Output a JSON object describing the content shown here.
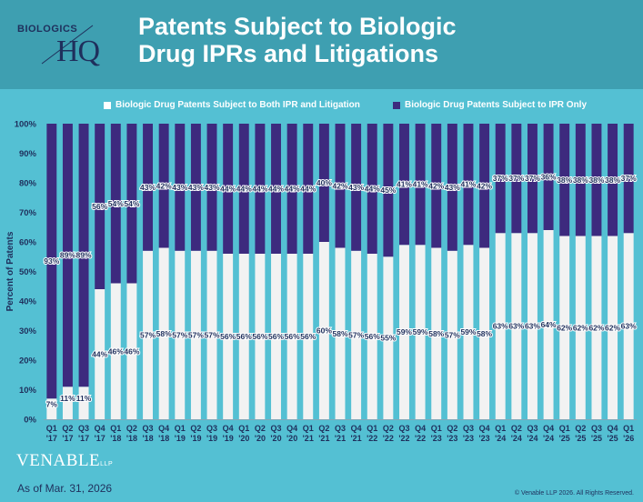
{
  "header": {
    "title_line1": "Patents Subject to Biologic",
    "title_line2": "Drug IPRs and Litigations",
    "logo_top": "BIOLOGICS",
    "logo_main": "HQ"
  },
  "footer": {
    "brand": "VENABLE",
    "brand_suffix": "LLP",
    "as_of": "As of Mar. 31, 2026",
    "copyright": "© Venable LLP 2026. All Rights Reserved."
  },
  "colors": {
    "both": "#f2f2f2",
    "ipr_only": "#3d2a7e",
    "background": "#54c0d3",
    "header": "#3e9fb1"
  },
  "chart_data": {
    "type": "bar",
    "stacked": true,
    "percent": true,
    "ylabel": "Percent of Patents",
    "ylim": [
      0,
      100
    ],
    "yticks": [
      "0%",
      "10%",
      "20%",
      "30%",
      "40%",
      "50%",
      "60%",
      "70%",
      "80%",
      "90%",
      "100%"
    ],
    "grid": false,
    "legend_position": "top",
    "categories": [
      [
        "Q1",
        "'17"
      ],
      [
        "Q2",
        "'17"
      ],
      [
        "Q3",
        "'17"
      ],
      [
        "Q4",
        "'17"
      ],
      [
        "Q1",
        "'18"
      ],
      [
        "Q2",
        "'18"
      ],
      [
        "Q3",
        "'18"
      ],
      [
        "Q4",
        "'18"
      ],
      [
        "Q1",
        "'19"
      ],
      [
        "Q2",
        "'19"
      ],
      [
        "Q3",
        "'19"
      ],
      [
        "Q4",
        "'19"
      ],
      [
        "Q1",
        "'20"
      ],
      [
        "Q2",
        "'20"
      ],
      [
        "Q3",
        "'20"
      ],
      [
        "Q4",
        "'20"
      ],
      [
        "Q1",
        "'21"
      ],
      [
        "Q2",
        "'21"
      ],
      [
        "Q3",
        "'21"
      ],
      [
        "Q4",
        "'21"
      ],
      [
        "Q1",
        "'22"
      ],
      [
        "Q2",
        "'22"
      ],
      [
        "Q3",
        "'22"
      ],
      [
        "Q4",
        "'22"
      ],
      [
        "Q1",
        "'23"
      ],
      [
        "Q2",
        "'23"
      ],
      [
        "Q3",
        "'23"
      ],
      [
        "Q4",
        "'23"
      ],
      [
        "Q1",
        "'24"
      ],
      [
        "Q2",
        "'24"
      ],
      [
        "Q3",
        "'24"
      ],
      [
        "Q4",
        "'24"
      ],
      [
        "Q1",
        "'25"
      ],
      [
        "Q2",
        "'25"
      ],
      [
        "Q3",
        "'25"
      ],
      [
        "Q4",
        "'25"
      ],
      [
        "Q1",
        "'26"
      ]
    ],
    "series": [
      {
        "name": "Biologic Drug Patents Subject to Both IPR and Litigation",
        "values": [
          7,
          11,
          11,
          44,
          46,
          46,
          57,
          58,
          57,
          57,
          57,
          56,
          56,
          56,
          56,
          56,
          56,
          60,
          58,
          57,
          56,
          55,
          59,
          59,
          58,
          57,
          59,
          58,
          63,
          63,
          63,
          64,
          62,
          62,
          62,
          62,
          63
        ]
      },
      {
        "name": "Biologic Drug Patents Subject to IPR Only",
        "values": [
          93,
          89,
          89,
          56,
          54,
          54,
          43,
          42,
          43,
          43,
          43,
          44,
          44,
          44,
          44,
          44,
          44,
          40,
          42,
          43,
          44,
          45,
          41,
          41,
          42,
          43,
          41,
          42,
          37,
          37,
          37,
          36,
          38,
          38,
          38,
          38,
          37
        ]
      }
    ]
  }
}
